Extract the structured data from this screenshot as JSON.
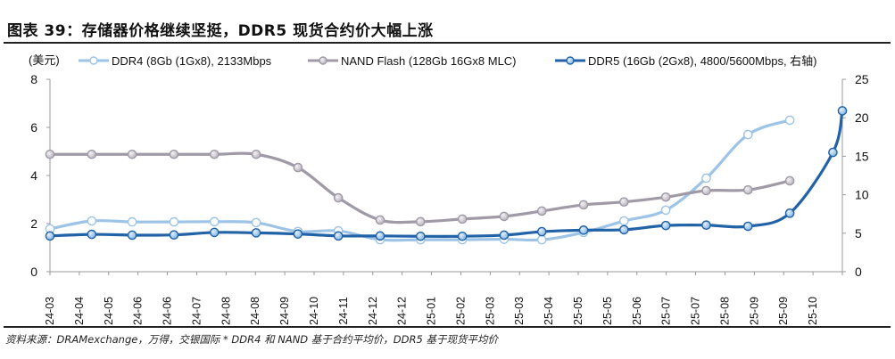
{
  "title": "图表 39：存储器价格继续坚挺，DDR5 现货合约价大幅上涨",
  "footnote": "资料来源：DRAMexchange，万得，交银国际  * DDR4 和 NAND 基于合约平均价，DDR5 基于现货平均价",
  "chart_data": {
    "type": "line",
    "unit_label": "(美元)",
    "left_axis": {
      "ylim": [
        0,
        8
      ],
      "ticks": [
        "0",
        "2",
        "4",
        "6",
        "8"
      ]
    },
    "right_axis": {
      "ylim": [
        0,
        25
      ],
      "ticks": [
        "0",
        "5",
        "10",
        "15",
        "20",
        "25"
      ]
    },
    "x_domain": [
      "2024-03-01",
      "2025-10-10"
    ],
    "x_tick_labels": [
      "24-03",
      "24-04",
      "24-05",
      "24-06",
      "24-06",
      "24-07",
      "24-08",
      "24-08",
      "24-09",
      "24-10",
      "24-11",
      "24-12",
      "24-12",
      "25-01",
      "25-02",
      "25-03",
      "25-03",
      "25-04",
      "25-05",
      "25-05",
      "25-06",
      "25-07",
      "25-07",
      "25-08",
      "25-09",
      "25-09",
      "25-10"
    ],
    "grid": false,
    "legend_position": "top",
    "series": [
      {
        "name": "DDR4 (8Gb (1Gx8), 2133Mbps",
        "axis": "left",
        "color": "#9DC3E6",
        "marker": "hollow",
        "x": [
          "2024-03",
          "2024-04",
          "2024-05",
          "2024-06",
          "2024-07",
          "2024-08",
          "2024-09",
          "2024-10",
          "2024-11",
          "2024-12",
          "2025-01",
          "2025-02",
          "2025-03",
          "2025-04",
          "2025-05",
          "2025-06",
          "2025-07",
          "2025-08",
          "2025-09"
        ],
        "values": [
          1.78,
          2.11,
          2.07,
          2.07,
          2.08,
          2.04,
          1.67,
          1.7,
          1.33,
          1.33,
          1.33,
          1.35,
          1.33,
          1.63,
          2.11,
          2.56,
          3.89,
          5.7,
          6.3
        ]
      },
      {
        "name": "NAND Flash (128Gb 16Gx8 MLC)",
        "axis": "left",
        "color": "#A09AA6",
        "marker": "grey",
        "x": [
          "2024-03",
          "2024-04",
          "2024-05",
          "2024-06",
          "2024-07",
          "2024-08",
          "2024-09",
          "2024-10",
          "2024-11",
          "2024-12",
          "2025-01",
          "2025-02",
          "2025-03",
          "2025-04",
          "2025-05",
          "2025-06",
          "2025-07",
          "2025-08",
          "2025-09"
        ],
        "values": [
          4.88,
          4.88,
          4.88,
          4.88,
          4.88,
          4.88,
          4.33,
          3.07,
          2.15,
          2.08,
          2.19,
          2.3,
          2.52,
          2.78,
          2.9,
          3.1,
          3.37,
          3.4,
          3.78
        ]
      },
      {
        "name": "DDR5 (16Gb (2Gx8), 4800/5600Mbps, 右轴)",
        "axis": "right",
        "color": "#2262A6",
        "marker": "blue",
        "x": [
          "2024-03",
          "2024-04",
          "2024-05",
          "2024-06",
          "2024-07",
          "2024-08",
          "2024-09",
          "2024-10",
          "2024-11",
          "2024-12",
          "2025-01",
          "2025-02",
          "2025-03",
          "2025-04",
          "2025-05",
          "2025-06",
          "2025-07",
          "2025-08",
          "2025-09",
          "2025-10-03",
          "2025-10-10"
        ],
        "values": [
          4.65,
          4.85,
          4.75,
          4.78,
          5.1,
          5.05,
          4.9,
          4.65,
          4.65,
          4.6,
          4.6,
          4.75,
          5.2,
          5.4,
          5.45,
          6.0,
          6.05,
          5.9,
          7.6,
          15.5,
          20.9
        ]
      }
    ]
  }
}
